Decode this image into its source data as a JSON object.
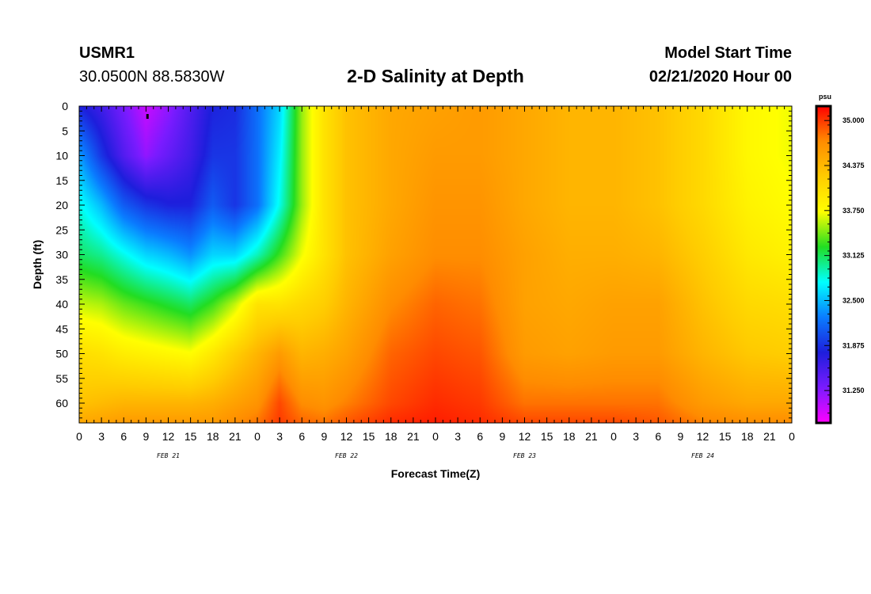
{
  "header": {
    "station_id": "USMR1",
    "coordinates": "30.0500N 88.5830W",
    "title": "2-D Salinity at Depth",
    "start_label": "Model Start Time",
    "start_value": "02/21/2020 Hour 00"
  },
  "colors": {
    "background": "#ffffff",
    "axis": "#000000",
    "palette": [
      "#ff00ff",
      "#7a1bff",
      "#1e1edc",
      "#0a7cff",
      "#00ffff",
      "#22dd22",
      "#ffff00",
      "#ffcc00",
      "#ff8c00",
      "#ff0000"
    ]
  },
  "chart_data": {
    "type": "heatmap",
    "title": "2-D Salinity at Depth",
    "xlabel": "Forecast Time(Z)",
    "ylabel": "Depth (ft)",
    "x_unit": "forecast hour",
    "xlim": [
      0,
      96
    ],
    "ylim": [
      64,
      0
    ],
    "x_tick_labels": [
      "0",
      "3",
      "6",
      "9",
      "12",
      "15",
      "18",
      "21",
      "0",
      "3",
      "6",
      "9",
      "12",
      "15",
      "18",
      "21",
      "0",
      "3",
      "6",
      "9",
      "12",
      "15",
      "18",
      "21",
      "0",
      "3",
      "6",
      "9",
      "12",
      "15",
      "18",
      "21",
      "0"
    ],
    "day_labels": [
      {
        "hour": 12,
        "label": "FEB 21"
      },
      {
        "hour": 36,
        "label": "FEB 22"
      },
      {
        "hour": 60,
        "label": "FEB 23"
      },
      {
        "hour": 84,
        "label": "FEB 24"
      }
    ],
    "y_ticks": [
      0,
      5,
      10,
      15,
      20,
      25,
      30,
      35,
      40,
      45,
      50,
      55,
      60
    ],
    "colorbar": {
      "unit": "psu",
      "min": 30.8,
      "max": 35.2,
      "labels": [
        "35.000",
        "34.375",
        "33.750",
        "33.125",
        "32.500",
        "31.875",
        "31.250"
      ]
    },
    "salinity_grid": {
      "hours": [
        0,
        3,
        6,
        9,
        12,
        15,
        18,
        21,
        24,
        27,
        30,
        33,
        36,
        42,
        48,
        54,
        60,
        66,
        72,
        78,
        84,
        90,
        96
      ],
      "depths": [
        0,
        10,
        20,
        30,
        40,
        50,
        60,
        64
      ],
      "values": [
        [
          31.8,
          31.6,
          31.3,
          31.0,
          31.2,
          31.5,
          31.8,
          31.85,
          32.2,
          32.6,
          33.5,
          34.0,
          34.3,
          34.5,
          34.55,
          34.6,
          34.5,
          34.4,
          34.4,
          34.3,
          34.1,
          33.8,
          33.7
        ],
        [
          32.4,
          31.9,
          31.5,
          31.2,
          31.4,
          31.6,
          31.9,
          31.9,
          32.2,
          32.7,
          33.5,
          34.0,
          34.3,
          34.5,
          34.6,
          34.6,
          34.5,
          34.4,
          34.4,
          34.3,
          34.1,
          33.8,
          33.7
        ],
        [
          32.8,
          32.5,
          32.1,
          31.9,
          31.8,
          31.8,
          32.1,
          31.9,
          32.2,
          32.8,
          33.5,
          34.0,
          34.3,
          34.5,
          34.65,
          34.65,
          34.5,
          34.4,
          34.4,
          34.3,
          34.1,
          33.85,
          33.75
        ],
        [
          33.1,
          33.0,
          32.8,
          32.6,
          32.5,
          32.35,
          32.6,
          32.6,
          32.9,
          33.3,
          33.7,
          34.0,
          34.3,
          34.55,
          34.7,
          34.7,
          34.55,
          34.45,
          34.45,
          34.4,
          34.2,
          33.95,
          33.85
        ],
        [
          33.6,
          33.55,
          33.4,
          33.3,
          33.2,
          33.1,
          33.3,
          33.6,
          34.0,
          34.0,
          34.1,
          34.2,
          34.4,
          34.7,
          34.85,
          34.8,
          34.55,
          34.5,
          34.55,
          34.55,
          34.3,
          34.1,
          34.05
        ],
        [
          34.05,
          34.0,
          33.9,
          33.85,
          33.8,
          33.75,
          33.95,
          34.2,
          34.4,
          34.6,
          34.4,
          34.45,
          34.55,
          34.85,
          34.95,
          34.9,
          34.6,
          34.55,
          34.6,
          34.6,
          34.4,
          34.25,
          34.2
        ],
        [
          34.3,
          34.35,
          34.4,
          34.4,
          34.4,
          34.4,
          34.45,
          34.55,
          34.65,
          34.95,
          34.7,
          34.65,
          34.75,
          34.95,
          35.05,
          35.0,
          34.8,
          34.8,
          34.8,
          34.8,
          34.6,
          34.5,
          34.5
        ],
        [
          34.5,
          34.55,
          34.6,
          34.6,
          34.6,
          34.6,
          34.6,
          34.7,
          34.8,
          35.0,
          34.85,
          34.8,
          34.9,
          35.05,
          35.1,
          35.05,
          34.95,
          34.95,
          34.95,
          34.9,
          34.75,
          34.7,
          34.7
        ]
      ]
    }
  }
}
